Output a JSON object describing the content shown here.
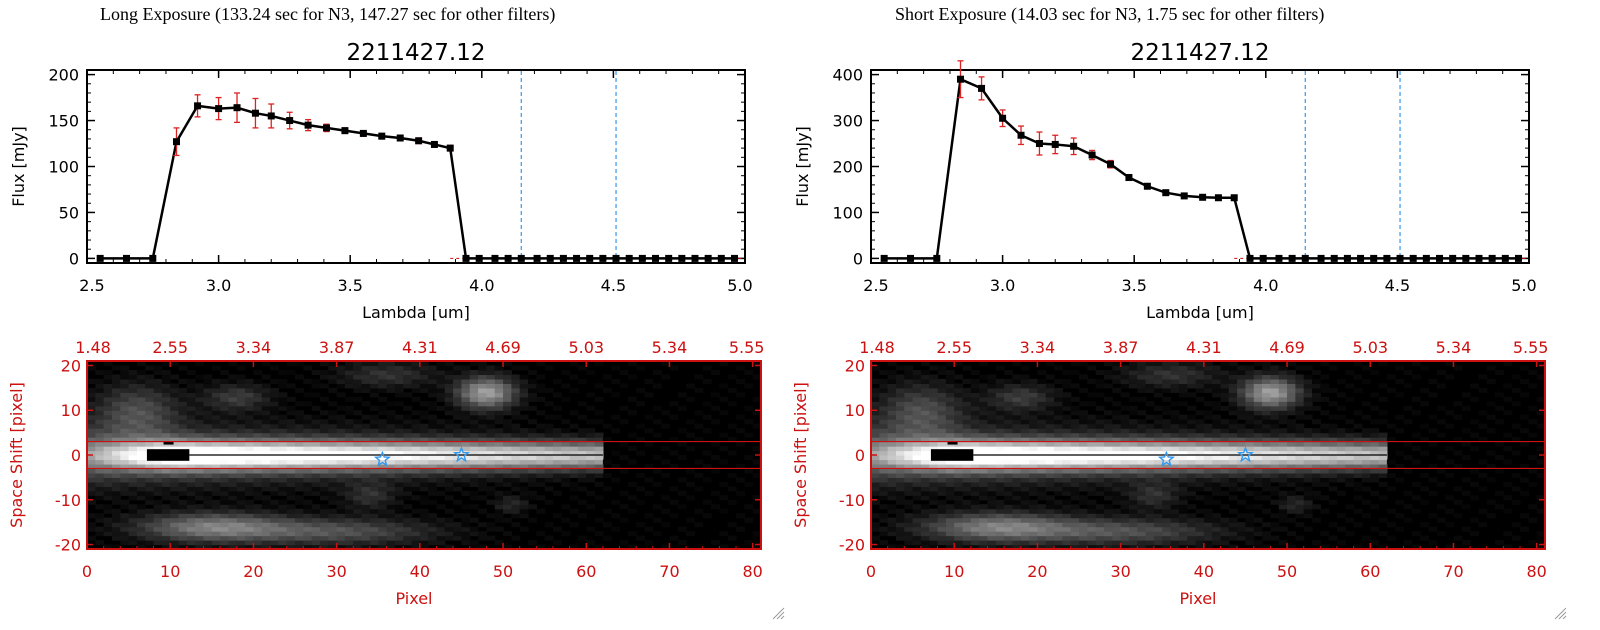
{
  "panels": [
    {
      "title": "Long Exposure (133.24 sec for N3, 147.27 sec for other filters)",
      "source_id": "2211427.12",
      "spectrum": [
        [
          2.55,
          0,
          0
        ],
        [
          2.65,
          0,
          0
        ],
        [
          2.75,
          0,
          0
        ],
        [
          2.84,
          127,
          15
        ],
        [
          2.92,
          166,
          12
        ],
        [
          3.0,
          163,
          12
        ],
        [
          3.07,
          164,
          16
        ],
        [
          3.14,
          158,
          16
        ],
        [
          3.2,
          155,
          13
        ],
        [
          3.27,
          150,
          9
        ],
        [
          3.34,
          145,
          6
        ],
        [
          3.41,
          142,
          4
        ],
        [
          3.48,
          139,
          3
        ],
        [
          3.55,
          136,
          3
        ],
        [
          3.62,
          133,
          3
        ],
        [
          3.69,
          131,
          3
        ],
        [
          3.76,
          128,
          3
        ],
        [
          3.82,
          124,
          3
        ],
        [
          3.88,
          120,
          3
        ],
        [
          3.94,
          0,
          0
        ],
        [
          3.99,
          0,
          0
        ],
        [
          4.05,
          0,
          0
        ],
        [
          4.1,
          0,
          0
        ],
        [
          4.15,
          0,
          0
        ],
        [
          4.21,
          0,
          0
        ],
        [
          4.26,
          0,
          0
        ],
        [
          4.31,
          0,
          0
        ],
        [
          4.36,
          0,
          0
        ],
        [
          4.41,
          0,
          0
        ],
        [
          4.46,
          0,
          0
        ],
        [
          4.51,
          0,
          0
        ],
        [
          4.56,
          0,
          0
        ],
        [
          4.61,
          0,
          0
        ],
        [
          4.66,
          0,
          0
        ],
        [
          4.71,
          0,
          0
        ],
        [
          4.76,
          0,
          0
        ],
        [
          4.81,
          0,
          0
        ],
        [
          4.86,
          0,
          0
        ],
        [
          4.91,
          0,
          0
        ],
        [
          4.96,
          0,
          0
        ]
      ],
      "ylim": [
        -5,
        205
      ],
      "yticks": [
        "0",
        "50",
        "100",
        "150",
        "200"
      ],
      "yvals": [
        0,
        50,
        100,
        150,
        200
      ]
    },
    {
      "title": "Short Exposure (14.03 sec for N3, 1.75 sec for other filters)",
      "source_id": "2211427.12",
      "spectrum": [
        [
          2.55,
          0,
          0
        ],
        [
          2.65,
          0,
          0
        ],
        [
          2.75,
          0,
          0
        ],
        [
          2.84,
          390,
          40
        ],
        [
          2.92,
          370,
          25
        ],
        [
          3.0,
          305,
          18
        ],
        [
          3.07,
          268,
          20
        ],
        [
          3.14,
          250,
          25
        ],
        [
          3.2,
          248,
          20
        ],
        [
          3.27,
          244,
          18
        ],
        [
          3.34,
          225,
          10
        ],
        [
          3.41,
          205,
          8
        ],
        [
          3.48,
          176,
          6
        ],
        [
          3.55,
          157,
          5
        ],
        [
          3.62,
          143,
          4
        ],
        [
          3.69,
          136,
          4
        ],
        [
          3.76,
          133,
          3
        ],
        [
          3.82,
          132,
          3
        ],
        [
          3.88,
          132,
          3
        ],
        [
          3.94,
          0,
          0
        ],
        [
          3.99,
          0,
          0
        ],
        [
          4.05,
          0,
          0
        ],
        [
          4.1,
          0,
          0
        ],
        [
          4.15,
          0,
          0
        ],
        [
          4.21,
          0,
          0
        ],
        [
          4.26,
          0,
          0
        ],
        [
          4.31,
          0,
          0
        ],
        [
          4.36,
          0,
          0
        ],
        [
          4.41,
          0,
          0
        ],
        [
          4.46,
          0,
          0
        ],
        [
          4.51,
          0,
          0
        ],
        [
          4.56,
          0,
          0
        ],
        [
          4.61,
          0,
          0
        ],
        [
          4.66,
          0,
          0
        ],
        [
          4.71,
          0,
          0
        ],
        [
          4.76,
          0,
          0
        ],
        [
          4.81,
          0,
          0
        ],
        [
          4.86,
          0,
          0
        ],
        [
          4.91,
          0,
          0
        ],
        [
          4.96,
          0,
          0
        ]
      ],
      "ylim": [
        -10,
        410
      ],
      "yticks": [
        "0",
        "100",
        "200",
        "300",
        "400"
      ],
      "yvals": [
        0,
        100,
        200,
        300,
        400
      ]
    }
  ],
  "chart_data": [
    {
      "type": "line",
      "title": "2211427.12",
      "xlabel": "Lambda [um]",
      "ylabel": "Flux [mJy]",
      "xlim": [
        2.5,
        5.0
      ],
      "xticks": [
        "2.5",
        "3.0",
        "3.5",
        "4.0",
        "4.5",
        "5.0"
      ],
      "xvals": [
        2.5,
        3.0,
        3.5,
        4.0,
        4.5,
        5.0
      ],
      "vlines": [
        4.15,
        4.51
      ]
    },
    {
      "type": "heatmap",
      "xlabel": "Pixel",
      "ylabel": "Space Shift [pixel]",
      "xlim": [
        0,
        81
      ],
      "ylim": [
        -21,
        21
      ],
      "xticks": [
        "0",
        "10",
        "20",
        "30",
        "40",
        "50",
        "60",
        "70",
        "80"
      ],
      "xvals": [
        0,
        10,
        20,
        30,
        40,
        50,
        60,
        70,
        80
      ],
      "yticks": [
        "20",
        "10",
        "0",
        "-10",
        "-20"
      ],
      "yvals": [
        20,
        10,
        0,
        -10,
        -20
      ],
      "top_axis_labels": [
        "1.48",
        "2.55",
        "3.34",
        "3.87",
        "4.31",
        "4.69",
        "5.03",
        "5.34",
        "5.55"
      ],
      "hlines": [
        3,
        -3
      ],
      "stars": [
        [
          35.5,
          -1
        ],
        [
          45,
          0
        ]
      ]
    }
  ],
  "colors": {
    "axis_red": "#cc1111",
    "errbar_red": "#dd2222",
    "vline_blue": "#3399ee",
    "star_blue": "#3399ee"
  }
}
